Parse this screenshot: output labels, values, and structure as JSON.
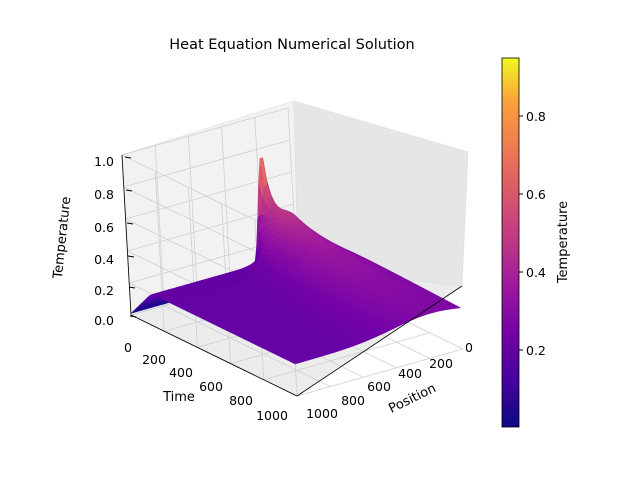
{
  "chart_data": {
    "type": "surface",
    "title": "Heat Equation Numerical Solution",
    "xlabel": "Position",
    "ylabel": "Time",
    "zlabel": "Temperature",
    "x_ticks": [
      "0",
      "200",
      "400",
      "600",
      "800",
      "1000"
    ],
    "y_ticks": [
      "0",
      "200",
      "400",
      "600",
      "800",
      "1000"
    ],
    "z_ticks": [
      "0.0",
      "0.2",
      "0.4",
      "0.6",
      "0.8",
      "1.0"
    ],
    "xlim": [
      0,
      1000
    ],
    "ylim": [
      0,
      1000
    ],
    "zlim": [
      0,
      1.0
    ],
    "grid": true,
    "colormap": "plasma",
    "colorbar": {
      "label": "Temperature",
      "ticks": [
        "0.2",
        "0.4",
        "0.6",
        "0.8"
      ],
      "range": [
        0.0,
        0.95
      ]
    },
    "surface_description": {
      "initial_condition": "temperature about 0.95 on a narrow band of positions near x = 100-250 at time 0, about 0 elsewhere",
      "long_time_level": 0.2
    }
  }
}
